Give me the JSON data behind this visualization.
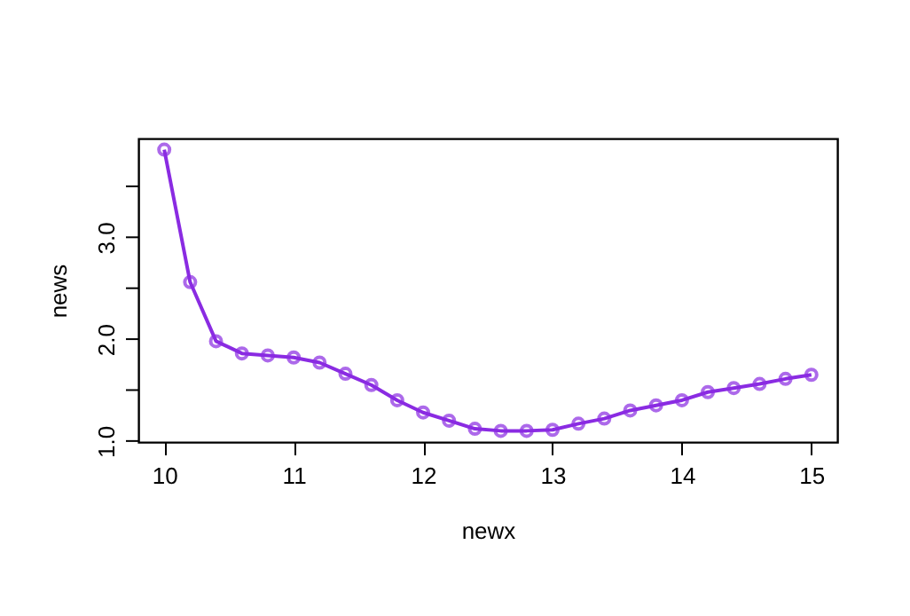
{
  "chart_data": {
    "type": "line",
    "xlabel": "newx",
    "ylabel": "news",
    "x": [
      10,
      10.2,
      10.4,
      10.6,
      10.8,
      11,
      11.2,
      11.4,
      11.6,
      11.8,
      12,
      12.2,
      12.4,
      12.6,
      12.8,
      13,
      13.2,
      13.4,
      13.6,
      13.8,
      14,
      14.2,
      14.4,
      14.6,
      14.8,
      15
    ],
    "series": [
      {
        "color": "#8a2be2",
        "values": [
          3.86,
          2.56,
          1.98,
          1.86,
          1.84,
          1.82,
          1.77,
          1.66,
          1.55,
          1.4,
          1.28,
          1.2,
          1.12,
          1.1,
          1.1,
          1.11,
          1.17,
          1.22,
          1.3,
          1.35,
          1.4,
          1.48,
          1.52,
          1.56,
          1.61,
          1.65
        ]
      }
    ],
    "xlim": [
      9.8,
      15.2
    ],
    "xticks": [
      10,
      11,
      12,
      13,
      14,
      15
    ],
    "ylim": [
      0.99,
      3.97
    ],
    "yticks": [
      {
        "value": 1,
        "label": "1.0"
      },
      {
        "value": 1.5,
        "label": null
      },
      {
        "value": 2,
        "label": "2.0"
      },
      {
        "value": 2.5,
        "label": null
      },
      {
        "value": 3,
        "label": "3.0"
      },
      {
        "value": 3.5,
        "label": null
      }
    ],
    "marker": "circle",
    "line_style": "solid",
    "grid": false
  }
}
